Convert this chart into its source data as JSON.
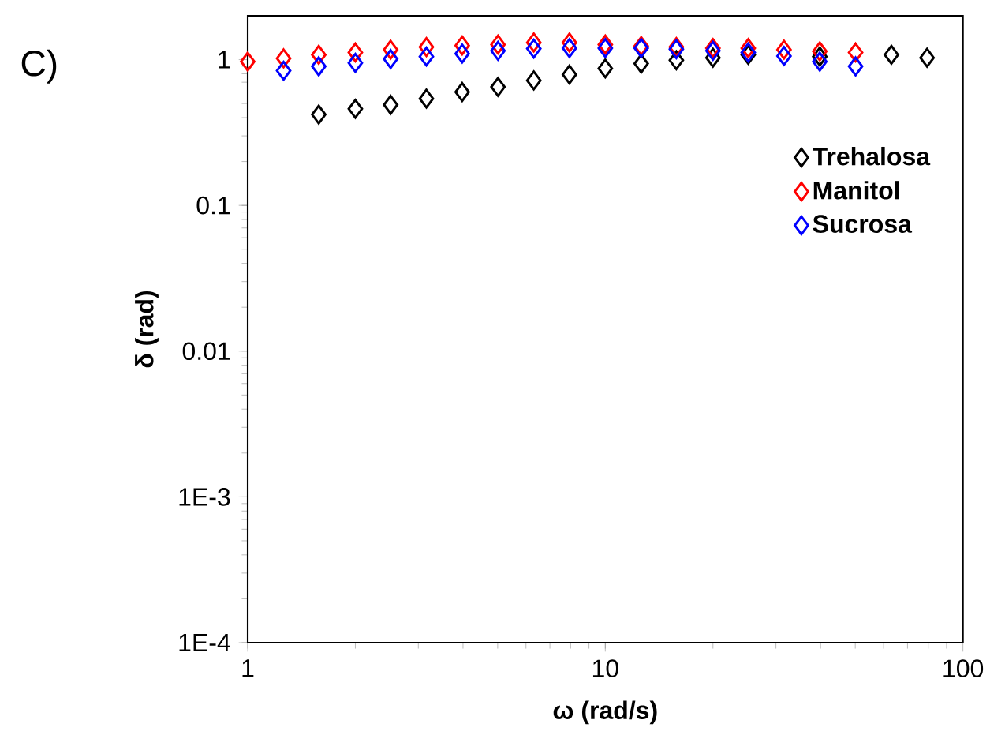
{
  "chart_data": {
    "type": "scatter",
    "title": "C)",
    "xlabel": "ω (rad/s)",
    "ylabel": "δ (rad)",
    "log": "xy",
    "marker": "diamond",
    "legend": "right",
    "grid": false,
    "xlim": [
      1,
      100
    ],
    "ylim": [
      0.0001,
      2
    ],
    "xticks": [
      1,
      10,
      100
    ],
    "yticks": [
      {
        "value": 0.0001,
        "label": "1E-4"
      },
      {
        "value": 0.001,
        "label": "1E-3"
      },
      0.01,
      0.1,
      1
    ],
    "series": [
      {
        "name": "Trehalosa",
        "color": "#000000",
        "x": [
          1.58,
          2.0,
          2.51,
          3.16,
          3.98,
          5.01,
          6.31,
          7.94,
          10.0,
          12.6,
          15.8,
          20.0,
          25.1,
          31.6,
          39.8,
          50.1,
          63.1,
          79.4
        ],
        "values": [
          0.42,
          0.46,
          0.49,
          0.54,
          0.6,
          0.65,
          0.72,
          0.79,
          0.87,
          0.94,
          0.99,
          1.03,
          1.08,
          null,
          1.05,
          null,
          1.08,
          1.03
        ]
      },
      {
        "name": "Manitol",
        "color": "#ff0000",
        "x": [
          1.0,
          1.26,
          1.58,
          2.0,
          2.51,
          3.16,
          3.98,
          5.01,
          6.31,
          7.94,
          10.0,
          12.6,
          15.8,
          20.0,
          25.1,
          31.6,
          39.8,
          50.1
        ],
        "values": [
          0.97,
          1.02,
          1.08,
          1.12,
          1.17,
          1.22,
          1.25,
          1.27,
          1.31,
          1.31,
          1.27,
          1.24,
          1.22,
          1.2,
          1.2,
          1.17,
          1.14,
          1.12
        ]
      },
      {
        "name": "Sucrosa",
        "color": "#0000ff",
        "x": [
          1.26,
          1.58,
          2.0,
          2.51,
          3.16,
          3.98,
          5.01,
          6.31,
          7.94,
          10.0,
          12.6,
          15.8,
          20.0,
          25.1,
          31.6,
          39.8,
          50.1
        ],
        "values": [
          0.84,
          0.9,
          0.95,
          1.01,
          1.05,
          1.1,
          1.15,
          1.19,
          1.2,
          1.2,
          1.2,
          1.18,
          1.15,
          1.12,
          1.06,
          0.97,
          0.9
        ]
      }
    ]
  }
}
